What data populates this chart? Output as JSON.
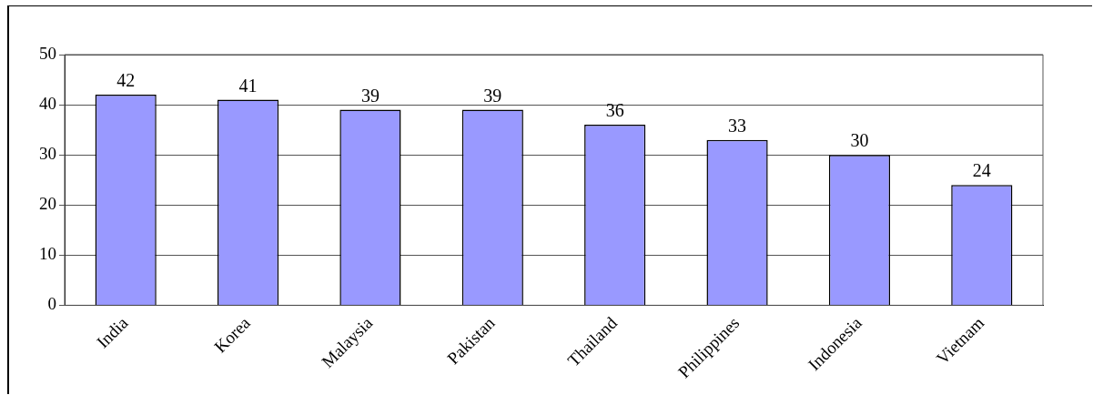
{
  "chart_data": {
    "type": "bar",
    "categories": [
      "India",
      "Korea",
      "Malaysia",
      "Pakistan",
      "Thailand",
      "Philippines",
      "Indonesia",
      "Vietnam"
    ],
    "values": [
      42,
      41,
      39,
      39,
      36,
      33,
      30,
      24
    ],
    "color": "#9999ff",
    "ylim": [
      0,
      50
    ],
    "yticks": [
      0,
      10,
      20,
      30,
      40,
      50
    ],
    "grid": "y",
    "data_labels": true
  }
}
